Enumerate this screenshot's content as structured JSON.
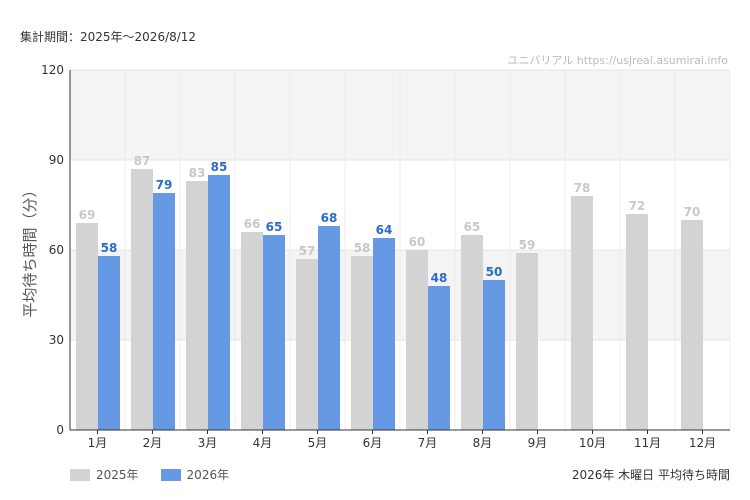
{
  "header": {
    "period": "集計期間：2025年〜2026/8/12"
  },
  "watermark": "ユニバリアル  https://usjreal.asumirai.info",
  "footer_title": "2026年 木曜日 平均待ち時間",
  "colors": {
    "series_2025": "#d3d3d3",
    "series_2026": "#6699e3",
    "label_2025": "#c8c8c8",
    "label_2026": "#2a6cc9",
    "band": "#f4f4f4"
  },
  "chart_data": {
    "type": "bar",
    "categories": [
      "1月",
      "2月",
      "3月",
      "4月",
      "5月",
      "6月",
      "7月",
      "8月",
      "9月",
      "10月",
      "11月",
      "12月"
    ],
    "series": [
      {
        "name": "2025年",
        "values": [
          69,
          87,
          83,
          66,
          57,
          58,
          60,
          65,
          59,
          78,
          72,
          70
        ]
      },
      {
        "name": "2026年",
        "values": [
          58,
          79,
          85,
          65,
          68,
          64,
          48,
          50,
          null,
          null,
          null,
          null
        ]
      }
    ],
    "ylabel": "平均待ち時間（分）",
    "xlabel": "",
    "ylim": [
      0,
      120
    ],
    "yticks": [
      0,
      30,
      60,
      90,
      120
    ],
    "grid": true,
    "legend_position": "bottom-left"
  }
}
